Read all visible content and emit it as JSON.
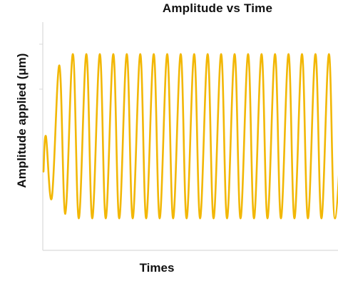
{
  "chart_data": {
    "type": "line",
    "title": "Amplitude vs Time",
    "xlabel": "Times",
    "ylabel": "Amplitude  applied (μm)",
    "grid": false,
    "x_ticks_labeled": false,
    "y_ticks_labeled": false,
    "ylim": [
      0,
      10
    ],
    "series": [
      {
        "color": "#F2B705",
        "peaks": [
          5.0,
          8.1,
          8.6,
          8.6,
          8.6,
          8.6,
          8.6,
          8.6,
          8.6,
          8.6,
          8.6,
          8.6,
          8.6,
          8.6,
          8.6,
          8.6,
          8.6,
          8.6,
          8.6,
          8.6,
          8.6,
          8.6
        ],
        "troughs": [
          2.3,
          1.6,
          1.4,
          1.4,
          1.4,
          1.4,
          1.4,
          1.4,
          1.4,
          1.4,
          1.4,
          1.4,
          1.4,
          1.4,
          1.4,
          1.4,
          1.4,
          1.4,
          1.4,
          1.4,
          1.4,
          1.4
        ],
        "cycles": 22
      }
    ]
  }
}
